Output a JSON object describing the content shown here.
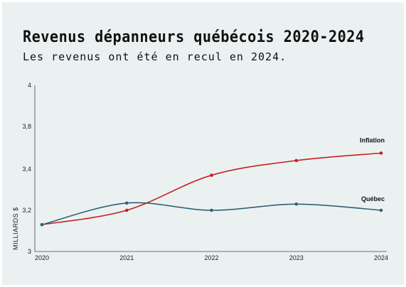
{
  "chart_data": {
    "type": "line",
    "title": "Revenus dépanneurs québécois 2020-2024",
    "subtitle": "Les revenus ont été en recul en 2024.",
    "xlabel": "",
    "ylabel": "MILLIARDS $",
    "x": [
      "2020",
      "2021",
      "2022",
      "2023",
      "2024"
    ],
    "yticks": [
      "3",
      "3,2",
      "3,4",
      "3,8",
      "4"
    ],
    "grid": false,
    "series": [
      {
        "name": "Inflation",
        "color": "#c81e24",
        "values": [
          3.13,
          3.2,
          3.37,
          3.48,
          3.55
        ]
      },
      {
        "name": "Québec",
        "color": "#2f6275",
        "values": [
          3.13,
          3.235,
          3.2,
          3.23,
          3.2
        ]
      }
    ]
  }
}
